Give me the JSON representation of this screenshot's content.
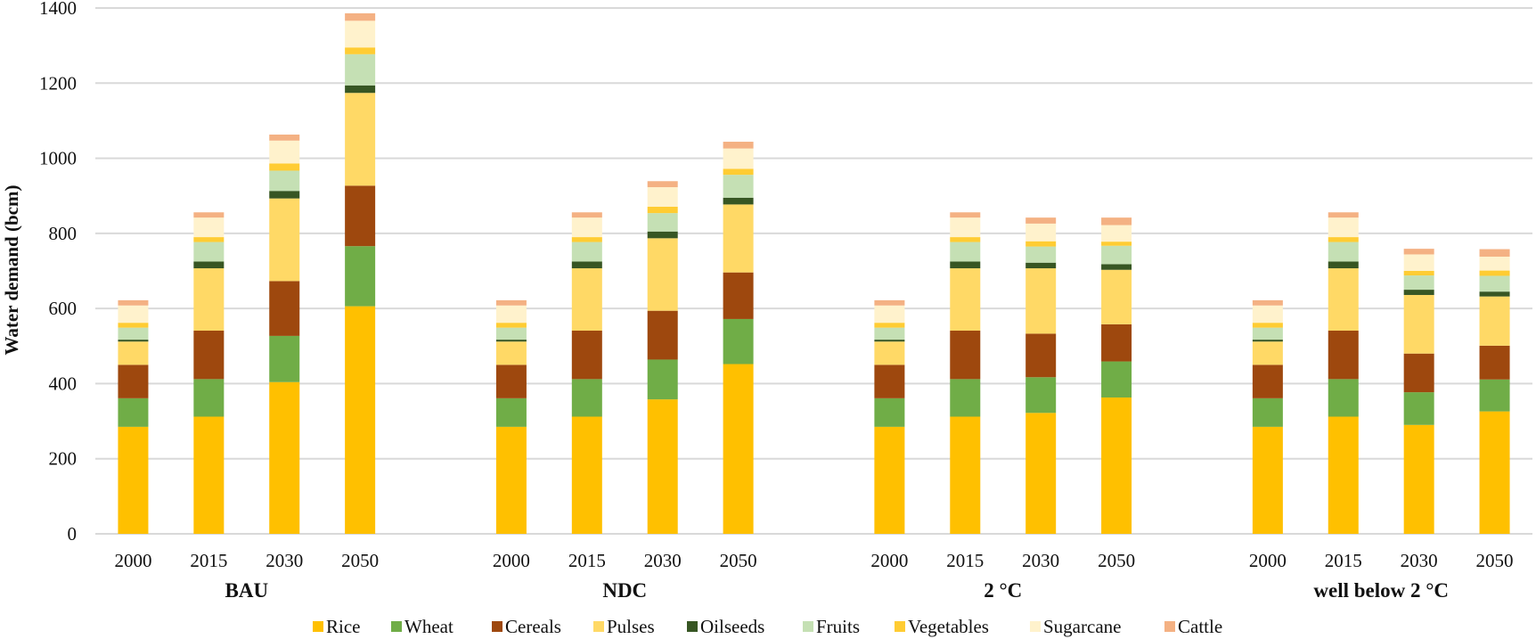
{
  "chart_data": {
    "type": "bar",
    "stacked": true,
    "title": "",
    "xlabel": "",
    "ylabel": "Water demand (bcm)",
    "ylim": [
      0,
      1400
    ],
    "yticks": [
      0,
      200,
      400,
      600,
      800,
      1000,
      1200,
      1400
    ],
    "grid": true,
    "legend_position": "bottom",
    "groups": [
      {
        "name": "BAU",
        "categories": [
          "2000",
          "2015",
          "2030",
          "2050"
        ]
      },
      {
        "name": "NDC",
        "categories": [
          "2000",
          "2015",
          "2030",
          "2050"
        ]
      },
      {
        "name": "2 °C",
        "categories": [
          "2000",
          "2015",
          "2030",
          "2050"
        ]
      },
      {
        "name": "well below   2 °C",
        "categories": [
          "2000",
          "2015",
          "2030",
          "2050"
        ]
      }
    ],
    "categories": [
      "BAU 2000",
      "BAU 2015",
      "BAU 2030",
      "BAU 2050",
      "NDC 2000",
      "NDC 2015",
      "NDC 2030",
      "NDC 2050",
      "2 °C 2000",
      "2 °C 2015",
      "2 °C 2030",
      "2 °C 2050",
      "well below 2 °C 2000",
      "well below 2 °C 2015",
      "well below 2 °C 2030",
      "well below 2 °C 2050"
    ],
    "series": [
      {
        "name": "Rice",
        "color": "#ffc000",
        "values": [
          285,
          312,
          404,
          606,
          285,
          312,
          358,
          452,
          285,
          312,
          322,
          363,
          285,
          312,
          290,
          326
        ]
      },
      {
        "name": "Wheat",
        "color": "#70ad47",
        "values": [
          76,
          100,
          123,
          160,
          76,
          100,
          106,
          120,
          76,
          100,
          95,
          96,
          76,
          100,
          87,
          85
        ]
      },
      {
        "name": "Cereals",
        "color": "#9e480e",
        "values": [
          89,
          129,
          146,
          161,
          89,
          129,
          130,
          124,
          89,
          129,
          116,
          99,
          89,
          129,
          103,
          90
        ]
      },
      {
        "name": "Pulses",
        "color": "#ffd966",
        "values": [
          62,
          166,
          220,
          247,
          62,
          166,
          193,
          181,
          62,
          166,
          174,
          145,
          62,
          166,
          156,
          131
        ]
      },
      {
        "name": "Oilseeds",
        "color": "#375623",
        "values": [
          5,
          18,
          20,
          20,
          5,
          18,
          18,
          18,
          5,
          18,
          15,
          15,
          5,
          18,
          14,
          13
        ]
      },
      {
        "name": "Fruits",
        "color": "#c5e0b4",
        "values": [
          32,
          52,
          54,
          83,
          32,
          52,
          49,
          61,
          32,
          52,
          43,
          49,
          32,
          52,
          38,
          42
        ]
      },
      {
        "name": "Vegetables",
        "color": "#ffcc33",
        "values": [
          13,
          13,
          19,
          18,
          13,
          13,
          17,
          16,
          13,
          13,
          14,
          11,
          13,
          13,
          12,
          14
        ]
      },
      {
        "name": "Sugarcane",
        "color": "#fff2cc",
        "values": [
          46,
          52,
          61,
          71,
          46,
          52,
          52,
          54,
          46,
          52,
          47,
          44,
          46,
          52,
          44,
          37
        ]
      },
      {
        "name": "Cattle",
        "color": "#f4b183",
        "values": [
          14,
          14,
          16,
          20,
          14,
          14,
          16,
          18,
          14,
          14,
          16,
          20,
          14,
          14,
          15,
          20
        ]
      }
    ]
  }
}
